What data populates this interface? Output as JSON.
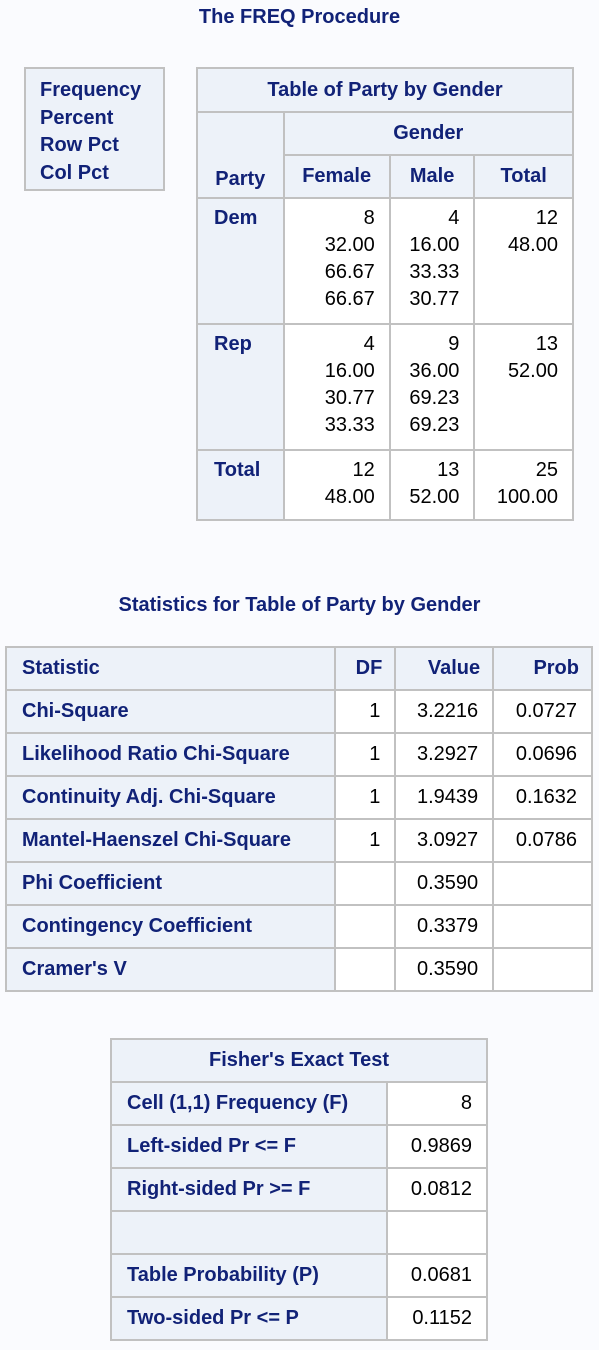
{
  "procedure_title": "The FREQ Procedure",
  "legend": [
    "Frequency",
    "Percent",
    "Row Pct",
    "Col Pct"
  ],
  "crosstab": {
    "title": "Table of Party by Gender",
    "col_var": "Gender",
    "row_var": "Party",
    "columns": [
      "Female",
      "Male",
      "Total"
    ],
    "rows": [
      {
        "label": "Dem",
        "cells": [
          [
            "8",
            "32.00",
            "66.67",
            "66.67"
          ],
          [
            "4",
            "16.00",
            "33.33",
            "30.77"
          ],
          [
            "12",
            "48.00"
          ]
        ]
      },
      {
        "label": "Rep",
        "cells": [
          [
            "4",
            "16.00",
            "30.77",
            "33.33"
          ],
          [
            "9",
            "36.00",
            "69.23",
            "69.23"
          ],
          [
            "13",
            "52.00"
          ]
        ]
      },
      {
        "label": "Total",
        "cells": [
          [
            "12",
            "48.00"
          ],
          [
            "13",
            "52.00"
          ],
          [
            "25",
            "100.00"
          ]
        ]
      }
    ]
  },
  "statistics": {
    "title": "Statistics for Table of Party by Gender",
    "headers": [
      "Statistic",
      "DF",
      "Value",
      "Prob"
    ],
    "rows": [
      [
        "Chi-Square",
        "1",
        "3.2216",
        "0.0727"
      ],
      [
        "Likelihood Ratio Chi-Square",
        "1",
        "3.2927",
        "0.0696"
      ],
      [
        "Continuity Adj. Chi-Square",
        "1",
        "1.9439",
        "0.1632"
      ],
      [
        "Mantel-Haenszel Chi-Square",
        "1",
        "3.0927",
        "0.0786"
      ],
      [
        "Phi Coefficient",
        "",
        "0.3590",
        ""
      ],
      [
        "Contingency Coefficient",
        "",
        "0.3379",
        ""
      ],
      [
        "Cramer's V",
        "",
        "0.3590",
        ""
      ]
    ]
  },
  "fisher": {
    "title": "Fisher's Exact Test",
    "rows": [
      [
        "Cell (1,1) Frequency (F)",
        "8"
      ],
      [
        "Left-sided Pr <= F",
        "0.9869"
      ],
      [
        "Right-sided Pr >= F",
        "0.0812"
      ],
      [
        "",
        ""
      ],
      [
        "Table Probability (P)",
        "0.0681"
      ],
      [
        "Two-sided Pr <= P",
        "0.1152"
      ]
    ]
  }
}
